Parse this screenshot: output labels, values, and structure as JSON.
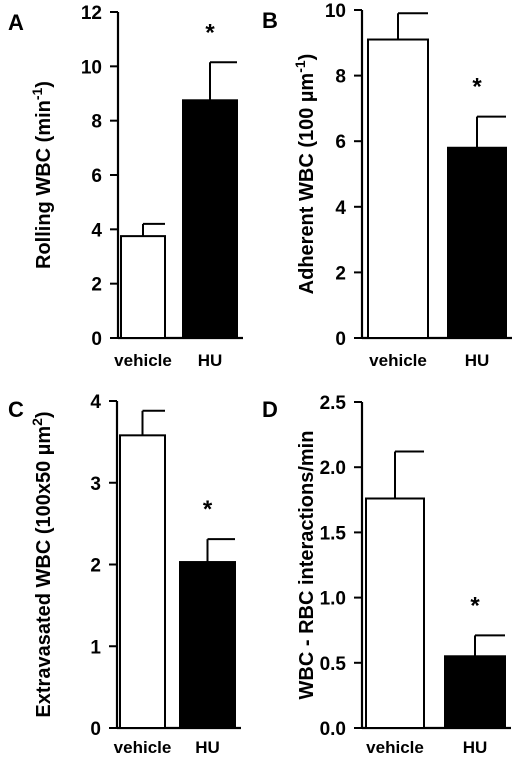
{
  "chart_data": [
    {
      "type": "bar",
      "panel": "A",
      "categories": [
        "vehicle",
        "HU"
      ],
      "values": [
        3.75,
        8.75
      ],
      "errors": [
        0.45,
        1.4
      ],
      "significance": [
        "",
        "*"
      ],
      "ylabel_main": "Rolling WBC (min",
      "ylabel_sup": "-1",
      "ylabel_end": ")",
      "ylim": [
        0,
        12
      ],
      "yticks": [
        0,
        2,
        4,
        6,
        8,
        10,
        12
      ],
      "bar_colors": [
        "#ffffff",
        "#000000"
      ]
    },
    {
      "type": "bar",
      "panel": "B",
      "categories": [
        "vehicle",
        "HU"
      ],
      "values": [
        9.1,
        5.8
      ],
      "errors": [
        0.8,
        0.95
      ],
      "significance": [
        "",
        "*"
      ],
      "ylabel_main": "Adherent WBC (100 µm",
      "ylabel_sup": "-1",
      "ylabel_end": ")",
      "ylim": [
        0,
        10
      ],
      "yticks": [
        0,
        2,
        4,
        6,
        8,
        10
      ],
      "bar_colors": [
        "#ffffff",
        "#000000"
      ]
    },
    {
      "type": "bar",
      "panel": "C",
      "categories": [
        "vehicle",
        "HU"
      ],
      "values": [
        3.58,
        2.03
      ],
      "errors": [
        0.3,
        0.28
      ],
      "significance": [
        "",
        "*"
      ],
      "ylabel_main": "Extravasated WBC (100x50 µm",
      "ylabel_sup": "2",
      "ylabel_end": ")",
      "ylim": [
        0,
        4
      ],
      "yticks": [
        0,
        1,
        2,
        3,
        4
      ],
      "bar_colors": [
        "#ffffff",
        "#000000"
      ]
    },
    {
      "type": "bar",
      "panel": "D",
      "categories": [
        "vehicle",
        "HU"
      ],
      "values": [
        1.76,
        0.55
      ],
      "errors": [
        0.36,
        0.16
      ],
      "significance": [
        "",
        "*"
      ],
      "ylabel_main": "WBC - RBC interactions/min",
      "ylabel_sup": "",
      "ylabel_end": "",
      "ylim": [
        0,
        2.5
      ],
      "yticks": [
        "0.0",
        "0.5",
        "1.0",
        "1.5",
        "2.0",
        "2.5"
      ],
      "bar_colors": [
        "#ffffff",
        "#000000"
      ]
    }
  ]
}
